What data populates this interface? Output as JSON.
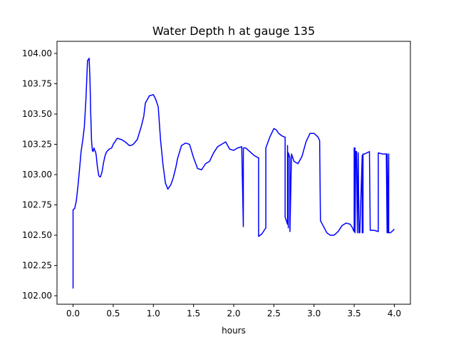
{
  "chart_data": {
    "type": "line",
    "title": "Water Depth h at gauge 135",
    "xlabel": "hours",
    "ylabel": "",
    "xlim": [
      -0.2,
      4.2
    ],
    "ylim": [
      101.93,
      104.1
    ],
    "grid": false,
    "legend": "none",
    "x_ticks": [
      {
        "value": 0.0,
        "label": "0.0"
      },
      {
        "value": 0.5,
        "label": "0.5"
      },
      {
        "value": 1.0,
        "label": "1.0"
      },
      {
        "value": 1.5,
        "label": "1.5"
      },
      {
        "value": 2.0,
        "label": "2.0"
      },
      {
        "value": 2.5,
        "label": "2.5"
      },
      {
        "value": 3.0,
        "label": "3.0"
      },
      {
        "value": 3.5,
        "label": "3.5"
      },
      {
        "value": 4.0,
        "label": "4.0"
      }
    ],
    "y_ticks": [
      {
        "value": 102.0,
        "label": "102.00"
      },
      {
        "value": 102.25,
        "label": "102.25"
      },
      {
        "value": 102.5,
        "label": "102.50"
      },
      {
        "value": 102.75,
        "label": "102.75"
      },
      {
        "value": 103.0,
        "label": "103.00"
      },
      {
        "value": 103.25,
        "label": "103.25"
      },
      {
        "value": 103.5,
        "label": "103.50"
      },
      {
        "value": 103.75,
        "label": "103.75"
      },
      {
        "value": 104.0,
        "label": "104.00"
      }
    ],
    "series": [
      {
        "color": "#0000ff",
        "x": [
          0.0,
          0.0,
          0.02,
          0.04,
          0.06,
          0.08,
          0.1,
          0.12,
          0.14,
          0.16,
          0.18,
          0.2,
          0.21,
          0.22,
          0.23,
          0.24,
          0.25,
          0.26,
          0.27,
          0.28,
          0.29,
          0.3,
          0.32,
          0.34,
          0.36,
          0.38,
          0.4,
          0.42,
          0.45,
          0.48,
          0.5,
          0.55,
          0.6,
          0.65,
          0.7,
          0.72,
          0.75,
          0.8,
          0.85,
          0.88,
          0.9,
          0.95,
          1.0,
          1.03,
          1.06,
          1.09,
          1.12,
          1.15,
          1.18,
          1.2,
          1.22,
          1.25,
          1.28,
          1.3,
          1.35,
          1.4,
          1.45,
          1.5,
          1.55,
          1.6,
          1.65,
          1.7,
          1.75,
          1.8,
          1.85,
          1.9,
          1.95,
          2.0,
          2.05,
          2.1,
          2.12,
          2.12,
          2.15,
          2.2,
          2.25,
          2.3,
          2.31,
          2.31,
          2.35,
          2.4,
          2.4,
          2.45,
          2.5,
          2.53,
          2.56,
          2.6,
          2.63,
          2.64,
          2.64,
          2.65,
          2.67,
          2.67,
          2.68,
          2.68,
          2.7,
          2.7,
          2.72,
          2.75,
          2.8,
          2.85,
          2.9,
          2.95,
          3.0,
          3.05,
          3.07,
          3.08,
          3.12,
          3.16,
          3.2,
          3.25,
          3.3,
          3.35,
          3.4,
          3.45,
          3.48,
          3.49,
          3.5,
          3.5,
          3.51,
          3.51,
          3.52,
          3.53,
          3.54,
          3.55,
          3.55,
          3.56,
          3.57,
          3.6,
          3.6,
          3.61,
          3.61,
          3.63,
          3.66,
          3.69,
          3.7,
          3.7,
          3.75,
          3.8,
          3.8,
          3.85,
          3.9,
          3.91,
          3.91,
          3.92,
          3.93,
          3.93,
          3.95,
          3.97,
          4.0
        ],
        "y": [
          102.06,
          102.71,
          102.72,
          102.78,
          102.9,
          103.04,
          103.19,
          103.28,
          103.39,
          103.62,
          103.94,
          103.96,
          103.8,
          103.5,
          103.28,
          103.2,
          103.19,
          103.22,
          103.2,
          103.19,
          103.15,
          103.08,
          102.99,
          102.98,
          103.02,
          103.1,
          103.16,
          103.19,
          103.21,
          103.22,
          103.25,
          103.3,
          103.29,
          103.27,
          103.24,
          103.24,
          103.25,
          103.29,
          103.4,
          103.48,
          103.59,
          103.65,
          103.66,
          103.62,
          103.56,
          103.28,
          103.08,
          102.93,
          102.88,
          102.9,
          102.92,
          102.98,
          103.06,
          103.13,
          103.24,
          103.26,
          103.25,
          103.14,
          103.05,
          103.04,
          103.09,
          103.11,
          103.18,
          103.23,
          103.25,
          103.27,
          103.21,
          103.2,
          103.22,
          103.23,
          102.57,
          103.22,
          103.22,
          103.19,
          103.16,
          103.14,
          103.14,
          102.49,
          102.51,
          102.56,
          103.22,
          103.31,
          103.38,
          103.37,
          103.34,
          103.32,
          103.31,
          103.31,
          102.65,
          102.63,
          102.59,
          103.24,
          102.56,
          103.18,
          103.14,
          102.53,
          103.17,
          103.11,
          103.09,
          103.15,
          103.27,
          103.34,
          103.34,
          103.31,
          103.28,
          102.62,
          102.57,
          102.52,
          102.5,
          102.5,
          102.53,
          102.58,
          102.6,
          102.59,
          102.56,
          102.54,
          102.53,
          103.22,
          103.22,
          102.52,
          103.19,
          103.19,
          102.52,
          103.18,
          103.17,
          102.52,
          102.52,
          103.16,
          102.52,
          102.52,
          103.17,
          103.17,
          103.18,
          103.19,
          102.54,
          102.54,
          102.54,
          102.53,
          103.18,
          103.17,
          103.17,
          102.52,
          103.17,
          102.52,
          103.17,
          102.52,
          102.52,
          102.53,
          102.55
        ]
      }
    ]
  }
}
